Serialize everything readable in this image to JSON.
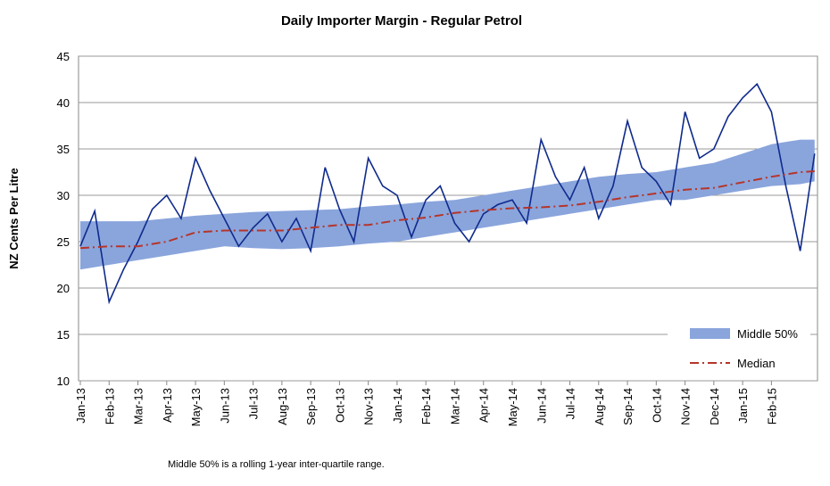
{
  "chart_data": {
    "type": "line",
    "title": "Daily Importer Margin - Regular Petrol",
    "y_label": "NZ Cents Per Litre",
    "footnote": "Middle 50% is a rolling 1-year inter-quartile range.",
    "xlim": [
      0,
      25.6
    ],
    "xticks": [
      {
        "value": 0,
        "label": "Jan-13"
      },
      {
        "value": 1,
        "label": "Feb-13"
      },
      {
        "value": 2,
        "label": "Mar-13"
      },
      {
        "value": 3,
        "label": "Apr-13"
      },
      {
        "value": 4,
        "label": "May-13"
      },
      {
        "value": 5,
        "label": "Jun-13"
      },
      {
        "value": 6,
        "label": "Jul-13"
      },
      {
        "value": 7,
        "label": "Aug-13"
      },
      {
        "value": 8,
        "label": "Sep-13"
      },
      {
        "value": 9,
        "label": "Oct-13"
      },
      {
        "value": 10,
        "label": "Nov-13"
      },
      {
        "value": 11,
        "label": "Jan-14"
      },
      {
        "value": 12,
        "label": "Feb-14"
      },
      {
        "value": 13,
        "label": "Mar-14"
      },
      {
        "value": 14,
        "label": "Apr-14"
      },
      {
        "value": 15,
        "label": "May-14"
      },
      {
        "value": 16,
        "label": "Jun-14"
      },
      {
        "value": 17,
        "label": "Jul-14"
      },
      {
        "value": 18,
        "label": "Aug-14"
      },
      {
        "value": 19,
        "label": "Sep-14"
      },
      {
        "value": 20,
        "label": "Oct-14"
      },
      {
        "value": 21,
        "label": "Nov-14"
      },
      {
        "value": 22,
        "label": "Dec-14"
      },
      {
        "value": 23,
        "label": "Jan-15"
      },
      {
        "value": 24,
        "label": "Feb-15"
      }
    ],
    "ylim": [
      10,
      45
    ],
    "yticks": [
      10,
      15,
      20,
      25,
      30,
      35,
      40,
      45
    ],
    "grid": true,
    "legend": "bottom-right",
    "band": {
      "name": "Middle 50%",
      "color": "#8aa5dc",
      "x": [
        0,
        1,
        2,
        3,
        4,
        5,
        6,
        7,
        8,
        9,
        10,
        11,
        12,
        13,
        14,
        15,
        16,
        17,
        18,
        19,
        20,
        21,
        22,
        23,
        24,
        25,
        25.5
      ],
      "lower": [
        22,
        22.5,
        23,
        23.5,
        24,
        24.5,
        24.3,
        24.2,
        24.3,
        24.5,
        24.8,
        25,
        25.5,
        26,
        26.5,
        27,
        27.5,
        28,
        28.5,
        29,
        29.5,
        29.5,
        30,
        30.5,
        31,
        31.2,
        31.5
      ],
      "upper": [
        27.2,
        27.2,
        27.2,
        27.5,
        27.8,
        28,
        28.2,
        28.3,
        28.4,
        28.5,
        28.8,
        29,
        29.3,
        29.5,
        30,
        30.5,
        31,
        31.5,
        32,
        32.3,
        32.5,
        33,
        33.5,
        34.5,
        35.5,
        36,
        36
      ]
    },
    "series": [
      {
        "color": "#0f2a8c",
        "dash": "solid",
        "x": [
          0,
          0.5,
          1,
          1.5,
          2,
          2.5,
          3,
          3.5,
          4,
          4.5,
          5,
          5.5,
          6,
          6.5,
          7,
          7.5,
          8,
          8.5,
          9,
          9.5,
          10,
          10.5,
          11,
          11.5,
          12,
          12.5,
          13,
          13.5,
          14,
          14.5,
          15,
          15.5,
          16,
          16.5,
          17,
          17.5,
          18,
          18.5,
          19,
          19.5,
          20,
          20.5,
          21,
          21.5,
          22,
          22.5,
          23,
          23.5,
          24,
          24.5,
          25,
          25.5
        ],
        "values": [
          24.5,
          28.3,
          18.5,
          22,
          25,
          28.5,
          30,
          27.5,
          34,
          30.5,
          27.5,
          24.5,
          26.5,
          28,
          25,
          27.5,
          24,
          33,
          28.5,
          25,
          34,
          31,
          30,
          25.5,
          29.5,
          31,
          27,
          25,
          28,
          29,
          29.5,
          27,
          36,
          32,
          29.5,
          33,
          27.5,
          31,
          38,
          33,
          31.5,
          29,
          39,
          34,
          35,
          38.5,
          40.5,
          42,
          39,
          31,
          24,
          34.5
        ]
      },
      {
        "name": "Median",
        "color": "#b5352a",
        "dash": "dashdot",
        "x": [
          0,
          1,
          2,
          3,
          4,
          5,
          6,
          7,
          8,
          9,
          10,
          11,
          12,
          13,
          14,
          15,
          16,
          17,
          18,
          19,
          20,
          21,
          22,
          23,
          24,
          25,
          25.5
        ],
        "values": [
          24.3,
          24.5,
          24.5,
          25,
          26,
          26.2,
          26.2,
          26.2,
          26.5,
          26.8,
          26.8,
          27.3,
          27.6,
          28.1,
          28.4,
          28.6,
          28.7,
          28.9,
          29.3,
          29.8,
          30.2,
          30.6,
          30.8,
          31.4,
          32,
          32.5,
          32.6
        ]
      }
    ]
  }
}
